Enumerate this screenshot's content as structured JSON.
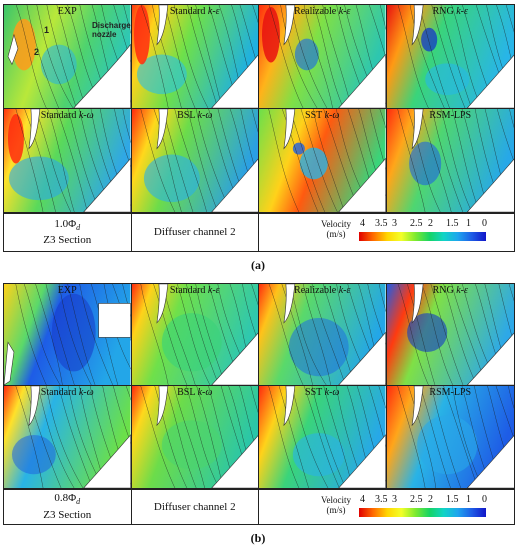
{
  "figure_a": {
    "panels": [
      {
        "name": "EXP",
        "sub": ""
      },
      {
        "name": "Standard ",
        "sub": "k-ε"
      },
      {
        "name": "Realizable ",
        "sub": "k-ε"
      },
      {
        "name": "RNG ",
        "sub": "k-ε"
      },
      {
        "name": "Standard ",
        "sub": "k-ω"
      },
      {
        "name": "BSL ",
        "sub": "k-ω"
      },
      {
        "name": "SST ",
        "sub": "k-ω"
      },
      {
        "name": "RSM-LPS",
        "sub": ""
      }
    ],
    "annotations": {
      "label1": "1",
      "label2": "2",
      "nozzle": "Discharge nozzle"
    },
    "flow_rate": "1.0Φ",
    "flow_sub": "d",
    "section": "Z3 Section",
    "channel": "Diffuser channel 2",
    "caption": "(a)"
  },
  "figure_b": {
    "panels": [
      {
        "name": "EXP",
        "sub": ""
      },
      {
        "name": "Standard ",
        "sub": "k-ε"
      },
      {
        "name": "Realizable ",
        "sub": "k-ε"
      },
      {
        "name": "RNG ",
        "sub": "k-ε"
      },
      {
        "name": "Standard ",
        "sub": "k-ω"
      },
      {
        "name": "BSL ",
        "sub": "k-ω"
      },
      {
        "name": "SST ",
        "sub": "k-ω"
      },
      {
        "name": "RSM-LPS",
        "sub": ""
      }
    ],
    "flow_rate": "0.8Φ",
    "flow_sub": "d",
    "section": "Z3 Section",
    "channel": "Diffuser channel 2",
    "caption": "(b)"
  },
  "legend": {
    "title": "Velocity",
    "unit": "(m/s)",
    "ticks": [
      "4",
      "3.5",
      "3",
      "2.5",
      "2",
      "1.5",
      "1",
      "0"
    ],
    "colors": [
      "#e00000",
      "#ff6a00",
      "#ffd500",
      "#f3ff2a",
      "#7dea2f",
      "#16d465",
      "#11d4c6",
      "#1ea5ee",
      "#1e5ce6",
      "#1216c8"
    ]
  }
}
